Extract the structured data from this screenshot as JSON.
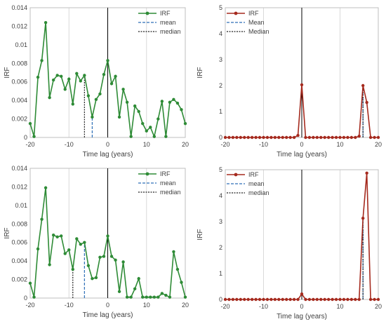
{
  "chart_data": [
    {
      "type": "line",
      "xlabel": "Time lag (years)",
      "ylabel": "IRF",
      "xlim": [
        -20,
        20
      ],
      "ylim": [
        0,
        0.014
      ],
      "xticks": [
        -20,
        -10,
        0,
        10,
        20
      ],
      "yticks": [
        0,
        0.002,
        0.004,
        0.006,
        0.008,
        0.01,
        0.012,
        0.014
      ],
      "grid": "vertical",
      "legend_position": "top-right",
      "series": [
        {
          "name": "IRF",
          "color": "#2e8b36",
          "x": [
            -20,
            -19,
            -18,
            -17,
            -16,
            -15,
            -14,
            -13,
            -12,
            -11,
            -10,
            -9,
            -8,
            -7,
            -6,
            -5,
            -4,
            -3,
            -2,
            -1,
            0,
            1,
            2,
            3,
            4,
            5,
            6,
            7,
            8,
            9,
            10,
            11,
            12,
            13,
            14,
            15,
            16,
            17,
            18,
            19,
            20
          ],
          "y": [
            0.0015,
            0.0001,
            0.0065,
            0.0083,
            0.0124,
            0.0043,
            0.0062,
            0.0067,
            0.0066,
            0.0052,
            0.0063,
            0.0036,
            0.0069,
            0.0061,
            0.0067,
            0.0045,
            0.0022,
            0.0041,
            0.0047,
            0.0068,
            0.0083,
            0.0058,
            0.0066,
            0.0022,
            0.0052,
            0.0038,
            0.0001,
            0.0034,
            0.0028,
            0.0015,
            0.0007,
            0.0011,
            0.0001,
            0.002,
            0.0039,
            0.0001,
            0.0038,
            0.0041,
            0.0037,
            0.003,
            0.0015
          ]
        }
      ],
      "lines": [
        {
          "name": "mean",
          "x": -4,
          "color": "#2e6fb7",
          "style": "dashed"
        },
        {
          "name": "median",
          "x": -6,
          "color": "#222222",
          "style": "dotted"
        }
      ]
    },
    {
      "type": "line",
      "xlabel": "Time lag (years)",
      "ylabel": "IRF",
      "xlim": [
        -20,
        20
      ],
      "ylim": [
        0,
        5
      ],
      "xticks": [
        -20,
        -10,
        0,
        10,
        20
      ],
      "yticks": [
        0,
        1,
        2,
        3,
        4,
        5
      ],
      "grid": "vertical",
      "legend_position": "top-left",
      "series": [
        {
          "name": "IRF",
          "color": "#a52a1e",
          "x": [
            -20,
            -19,
            -18,
            -17,
            -16,
            -15,
            -14,
            -13,
            -12,
            -11,
            -10,
            -9,
            -8,
            -7,
            -6,
            -5,
            -4,
            -3,
            -2,
            -1,
            0,
            1,
            2,
            3,
            4,
            5,
            6,
            7,
            8,
            9,
            10,
            11,
            12,
            13,
            14,
            15,
            16,
            17,
            18,
            19,
            20
          ],
          "y": [
            0,
            0,
            0,
            0,
            0,
            0,
            0,
            0,
            0,
            0,
            0,
            0,
            0,
            0,
            0,
            0,
            0,
            0,
            0,
            0.08,
            2.03,
            0,
            0,
            0,
            0,
            0,
            0,
            0,
            0,
            0,
            0,
            0,
            0,
            0,
            0,
            0.05,
            2.0,
            1.35,
            0,
            0,
            0
          ]
        }
      ],
      "lines": [
        {
          "name": "Mean",
          "x": 16,
          "color": "#2e6fb7",
          "style": "dashed"
        },
        {
          "name": "Median",
          "x": 16,
          "color": "#222222",
          "style": "dotted"
        }
      ]
    },
    {
      "type": "line",
      "xlabel": "Time lag (years)",
      "ylabel": "IRF",
      "xlim": [
        -20,
        20
      ],
      "ylim": [
        0,
        0.014
      ],
      "xticks": [
        -20,
        -10,
        0,
        10,
        20
      ],
      "yticks": [
        0,
        0.002,
        0.004,
        0.006,
        0.008,
        0.01,
        0.012,
        0.014
      ],
      "grid": "vertical",
      "legend_position": "top-right",
      "series": [
        {
          "name": "IRF",
          "color": "#2e8b36",
          "x": [
            -20,
            -19,
            -18,
            -17,
            -16,
            -15,
            -14,
            -13,
            -12,
            -11,
            -10,
            -9,
            -8,
            -7,
            -6,
            -5,
            -4,
            -3,
            -2,
            -1,
            0,
            1,
            2,
            3,
            4,
            5,
            6,
            7,
            8,
            9,
            10,
            11,
            12,
            13,
            14,
            15,
            16,
            17,
            18,
            19,
            20
          ],
          "y": [
            0.0016,
            0.0001,
            0.0053,
            0.0085,
            0.0119,
            0.0036,
            0.0068,
            0.0066,
            0.0067,
            0.0048,
            0.0052,
            0.0031,
            0.0064,
            0.0058,
            0.006,
            0.0035,
            0.0021,
            0.0022,
            0.0044,
            0.0045,
            0.0067,
            0.0045,
            0.0041,
            0.0007,
            0.0039,
            0.0001,
            0.0001,
            0.001,
            0.0021,
            0.0001,
            0.0001,
            0.0001,
            0.0001,
            0.0001,
            0.0005,
            0.0003,
            0.0001,
            0.005,
            0.0031,
            0.0017,
            0.0001
          ]
        }
      ],
      "lines": [
        {
          "name": "mean",
          "x": -6,
          "color": "#2e6fb7",
          "style": "dashed"
        },
        {
          "name": "median",
          "x": -9,
          "color": "#222222",
          "style": "dotted"
        }
      ]
    },
    {
      "type": "line",
      "xlabel": "Time lag (years)",
      "ylabel": "IRF",
      "xlim": [
        -20,
        20
      ],
      "ylim": [
        0,
        5
      ],
      "xticks": [
        -20,
        -10,
        0,
        10,
        20
      ],
      "yticks": [
        0,
        1,
        2,
        3,
        4,
        5
      ],
      "grid": "vertical",
      "legend_position": "top-left",
      "series": [
        {
          "name": "IRF",
          "color": "#a52a1e",
          "x": [
            -20,
            -19,
            -18,
            -17,
            -16,
            -15,
            -14,
            -13,
            -12,
            -11,
            -10,
            -9,
            -8,
            -7,
            -6,
            -5,
            -4,
            -3,
            -2,
            -1,
            0,
            1,
            2,
            3,
            4,
            5,
            6,
            7,
            8,
            9,
            10,
            11,
            12,
            13,
            14,
            15,
            16,
            17,
            18,
            19,
            20
          ],
          "y": [
            0,
            0,
            0,
            0,
            0,
            0,
            0,
            0,
            0,
            0,
            0,
            0,
            0,
            0,
            0,
            0,
            0,
            0,
            0,
            0,
            0.21,
            0,
            0,
            0,
            0,
            0,
            0,
            0,
            0,
            0,
            0,
            0,
            0,
            0,
            0,
            0,
            3.13,
            4.87,
            0,
            0,
            0
          ]
        }
      ],
      "lines": [
        {
          "name": "mean",
          "x": 16,
          "color": "#2e6fb7",
          "style": "dashed"
        },
        {
          "name": "median",
          "x": 16,
          "color": "#222222",
          "style": "dotted"
        }
      ]
    }
  ]
}
